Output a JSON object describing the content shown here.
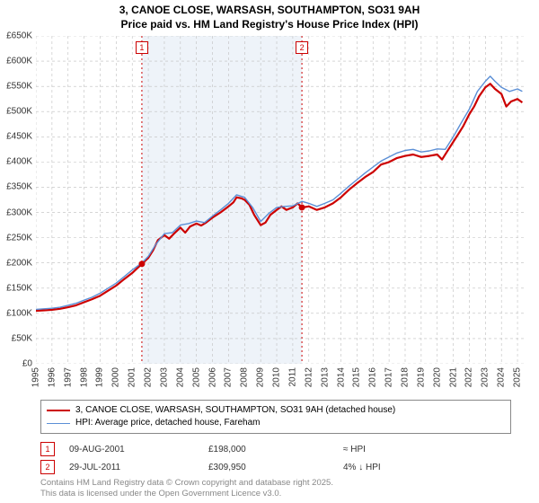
{
  "title_line1": "3, CANOE CLOSE, WARSASH, SOUTHAMPTON, SO31 9AH",
  "title_line2": "Price paid vs. HM Land Registry's House Price Index (HPI)",
  "chart": {
    "type": "line",
    "background_color": "#ffffff",
    "shaded_band": {
      "x_from": 2001.6,
      "x_to": 2011.57,
      "color": "#eef3f9"
    },
    "xlim": [
      1995,
      2025.5
    ],
    "ylim": [
      0,
      650000
    ],
    "x_ticks": [
      1995,
      1996,
      1997,
      1998,
      1999,
      2000,
      2001,
      2002,
      2003,
      2004,
      2005,
      2006,
      2007,
      2008,
      2009,
      2010,
      2011,
      2012,
      2013,
      2014,
      2015,
      2016,
      2017,
      2018,
      2019,
      2020,
      2021,
      2022,
      2023,
      2024,
      2025
    ],
    "y_ticks": [
      0,
      50000,
      100000,
      150000,
      200000,
      250000,
      300000,
      350000,
      400000,
      450000,
      500000,
      550000,
      600000,
      650000
    ],
    "y_tick_labels": [
      "£0",
      "£50K",
      "£100K",
      "£150K",
      "£200K",
      "£250K",
      "£300K",
      "£350K",
      "£400K",
      "£450K",
      "£500K",
      "£550K",
      "£600K",
      "£650K"
    ],
    "grid_color": "#bfbfbf",
    "grid_dash": "3,3",
    "axis_label_fontsize": 10,
    "title_fontsize": 12,
    "series": [
      {
        "name": "3, CANOE CLOSE, WARSASH, SOUTHAMPTON, SO31 9AH (detached house)",
        "color": "#cc0000",
        "line_width": 2.2,
        "points": [
          [
            1995.0,
            105000
          ],
          [
            1995.5,
            106000
          ],
          [
            1996.0,
            107000
          ],
          [
            1996.5,
            109000
          ],
          [
            1997.0,
            112000
          ],
          [
            1997.5,
            116000
          ],
          [
            1998.0,
            122000
          ],
          [
            1998.5,
            128000
          ],
          [
            1999.0,
            135000
          ],
          [
            1999.5,
            145000
          ],
          [
            2000.0,
            155000
          ],
          [
            2000.5,
            168000
          ],
          [
            2001.0,
            180000
          ],
          [
            2001.6,
            198000
          ],
          [
            2002.0,
            210000
          ],
          [
            2002.3,
            225000
          ],
          [
            2002.6,
            245000
          ],
          [
            2003.0,
            255000
          ],
          [
            2003.3,
            248000
          ],
          [
            2003.6,
            258000
          ],
          [
            2004.0,
            270000
          ],
          [
            2004.3,
            260000
          ],
          [
            2004.6,
            272000
          ],
          [
            2005.0,
            278000
          ],
          [
            2005.3,
            274000
          ],
          [
            2005.6,
            280000
          ],
          [
            2006.0,
            290000
          ],
          [
            2006.5,
            300000
          ],
          [
            2007.0,
            312000
          ],
          [
            2007.3,
            320000
          ],
          [
            2007.5,
            330000
          ],
          [
            2007.8,
            328000
          ],
          [
            2008.0,
            325000
          ],
          [
            2008.3,
            315000
          ],
          [
            2008.6,
            295000
          ],
          [
            2009.0,
            275000
          ],
          [
            2009.3,
            280000
          ],
          [
            2009.6,
            295000
          ],
          [
            2010.0,
            305000
          ],
          [
            2010.3,
            312000
          ],
          [
            2010.6,
            305000
          ],
          [
            2011.0,
            310000
          ],
          [
            2011.3,
            318000
          ],
          [
            2011.57,
            309950
          ],
          [
            2012.0,
            312000
          ],
          [
            2012.5,
            305000
          ],
          [
            2013.0,
            310000
          ],
          [
            2013.5,
            318000
          ],
          [
            2014.0,
            330000
          ],
          [
            2014.5,
            345000
          ],
          [
            2015.0,
            358000
          ],
          [
            2015.5,
            370000
          ],
          [
            2016.0,
            380000
          ],
          [
            2016.5,
            395000
          ],
          [
            2017.0,
            400000
          ],
          [
            2017.5,
            408000
          ],
          [
            2018.0,
            412000
          ],
          [
            2018.5,
            415000
          ],
          [
            2019.0,
            410000
          ],
          [
            2019.5,
            412000
          ],
          [
            2020.0,
            415000
          ],
          [
            2020.3,
            405000
          ],
          [
            2020.6,
            420000
          ],
          [
            2021.0,
            440000
          ],
          [
            2021.3,
            455000
          ],
          [
            2021.6,
            470000
          ],
          [
            2022.0,
            495000
          ],
          [
            2022.3,
            510000
          ],
          [
            2022.6,
            530000
          ],
          [
            2023.0,
            548000
          ],
          [
            2023.3,
            555000
          ],
          [
            2023.6,
            545000
          ],
          [
            2024.0,
            535000
          ],
          [
            2024.3,
            510000
          ],
          [
            2024.6,
            520000
          ],
          [
            2025.0,
            525000
          ],
          [
            2025.3,
            518000
          ]
        ]
      },
      {
        "name": "HPI: Average price, detached house, Fareham",
        "color": "#5b8fd6",
        "line_width": 1.4,
        "points": [
          [
            1995.0,
            108000
          ],
          [
            1995.5,
            109000
          ],
          [
            1996.0,
            110000
          ],
          [
            1996.5,
            112000
          ],
          [
            1997.0,
            116000
          ],
          [
            1997.5,
            120000
          ],
          [
            1998.0,
            126000
          ],
          [
            1998.5,
            132000
          ],
          [
            1999.0,
            140000
          ],
          [
            1999.5,
            150000
          ],
          [
            2000.0,
            160000
          ],
          [
            2000.5,
            173000
          ],
          [
            2001.0,
            186000
          ],
          [
            2001.6,
            200000
          ],
          [
            2002.0,
            213000
          ],
          [
            2002.5,
            238000
          ],
          [
            2003.0,
            258000
          ],
          [
            2003.5,
            260000
          ],
          [
            2004.0,
            275000
          ],
          [
            2004.5,
            278000
          ],
          [
            2005.0,
            283000
          ],
          [
            2005.5,
            280000
          ],
          [
            2006.0,
            293000
          ],
          [
            2006.5,
            305000
          ],
          [
            2007.0,
            318000
          ],
          [
            2007.5,
            335000
          ],
          [
            2008.0,
            330000
          ],
          [
            2008.5,
            310000
          ],
          [
            2009.0,
            282000
          ],
          [
            2009.5,
            298000
          ],
          [
            2010.0,
            310000
          ],
          [
            2010.5,
            312000
          ],
          [
            2011.0,
            313000
          ],
          [
            2011.57,
            322000
          ],
          [
            2012.0,
            318000
          ],
          [
            2012.5,
            312000
          ],
          [
            2013.0,
            318000
          ],
          [
            2013.5,
            325000
          ],
          [
            2014.0,
            338000
          ],
          [
            2014.5,
            352000
          ],
          [
            2015.0,
            365000
          ],
          [
            2015.5,
            378000
          ],
          [
            2016.0,
            390000
          ],
          [
            2016.5,
            402000
          ],
          [
            2017.0,
            410000
          ],
          [
            2017.5,
            418000
          ],
          [
            2018.0,
            423000
          ],
          [
            2018.5,
            425000
          ],
          [
            2019.0,
            420000
          ],
          [
            2019.5,
            422000
          ],
          [
            2020.0,
            426000
          ],
          [
            2020.5,
            425000
          ],
          [
            2021.0,
            450000
          ],
          [
            2021.5,
            478000
          ],
          [
            2022.0,
            505000
          ],
          [
            2022.5,
            540000
          ],
          [
            2023.0,
            560000
          ],
          [
            2023.3,
            570000
          ],
          [
            2023.6,
            560000
          ],
          [
            2024.0,
            548000
          ],
          [
            2024.5,
            540000
          ],
          [
            2025.0,
            545000
          ],
          [
            2025.3,
            540000
          ]
        ]
      }
    ],
    "sale_markers": [
      {
        "n": "1",
        "x": 2001.6,
        "y": 198000,
        "color": "#cc0000"
      },
      {
        "n": "2",
        "x": 2011.57,
        "y": 309950,
        "color": "#cc0000"
      }
    ],
    "marker_line_color": "#cc0000",
    "marker_line_dash": "2,3"
  },
  "legend": {
    "items": [
      {
        "label": "3, CANOE CLOSE, WARSASH, SOUTHAMPTON, SO31 9AH (detached house)",
        "color": "#cc0000",
        "width": 2.2
      },
      {
        "label": "HPI: Average price, detached house, Fareham",
        "color": "#5b8fd6",
        "width": 1.4
      }
    ]
  },
  "sales": [
    {
      "n": "1",
      "date": "09-AUG-2001",
      "price": "£198,000",
      "delta": "≈ HPI",
      "color": "#cc0000"
    },
    {
      "n": "2",
      "date": "29-JUL-2011",
      "price": "£309,950",
      "delta": "4% ↓ HPI",
      "color": "#cc0000"
    }
  ],
  "sale_col_widths": {
    "date": "155px",
    "price": "150px",
    "delta": "120px"
  },
  "footer": {
    "line1": "Contains HM Land Registry data © Crown copyright and database right 2025.",
    "line2": "This data is licensed under the Open Government Licence v3.0."
  }
}
